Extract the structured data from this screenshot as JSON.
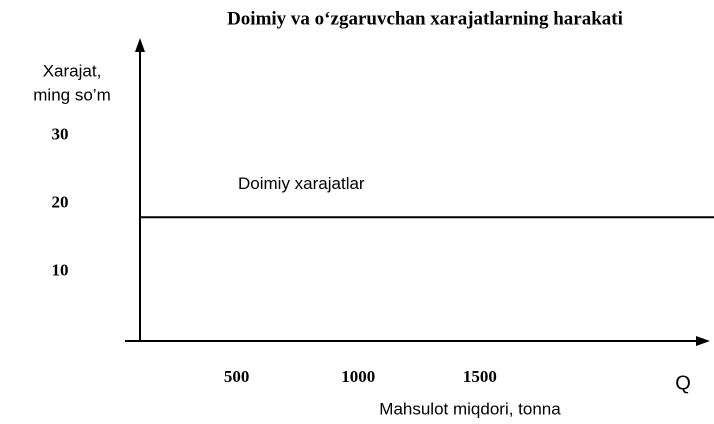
{
  "chart_data": {
    "type": "line",
    "title": "Doimiy va o‘zgaruvchan xarajatlarning harakati",
    "ylabel": [
      "Xarajat,",
      "ming so’m"
    ],
    "xlabel": "Mahsulot miqdori, tonna",
    "xsymbol": "Q",
    "x": [
      0,
      2360
    ],
    "series": [
      {
        "name": "Doimiy xarajatlar",
        "color": "#000000",
        "values": [
          18,
          18
        ]
      }
    ],
    "xlim": [
      0,
      2360
    ],
    "xticks": [
      500,
      1000,
      1500
    ],
    "ylim": [
      0,
      44
    ],
    "yticks": [
      10,
      20,
      30
    ],
    "grid": false
  }
}
